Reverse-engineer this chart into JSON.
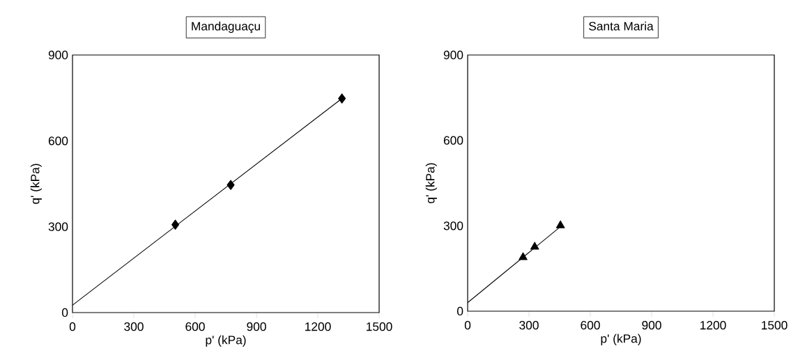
{
  "chart_data": [
    {
      "type": "scatter",
      "title": "Mandaguaçu",
      "xlabel": "p' (kPa)",
      "ylabel": "q' (kPa)",
      "marker": "diamond",
      "xlim": [
        0,
        1500
      ],
      "ylim": [
        0,
        900
      ],
      "xticks": [
        0,
        300,
        600,
        900,
        1200,
        1500
      ],
      "yticks": [
        0,
        300,
        600,
        900
      ],
      "grid": false,
      "legend": false,
      "series": [
        {
          "color": "#000000",
          "x": [
            503,
            774,
            1318
          ],
          "values": [
            307,
            446,
            748
          ]
        },
        {
          "type": "line",
          "color": "#000000",
          "marker": "none",
          "x": [
            0,
            1318
          ],
          "values": [
            26,
            748
          ]
        }
      ]
    },
    {
      "type": "scatter",
      "title": "Santa Maria",
      "xlabel": "p' (kPa)",
      "ylabel": "q' (kPa)",
      "marker": "triangle",
      "xlim": [
        0,
        1500
      ],
      "ylim": [
        0,
        900
      ],
      "xticks": [
        0,
        300,
        600,
        900,
        1200,
        1500
      ],
      "yticks": [
        0,
        300,
        600,
        900
      ],
      "grid": false,
      "legend": false,
      "series": [
        {
          "color": "#000000",
          "x": [
            271,
            328,
            454
          ],
          "values": [
            189,
            226,
            301
          ]
        },
        {
          "type": "line",
          "color": "#000000",
          "marker": "none",
          "x": [
            0,
            454
          ],
          "values": [
            30,
            297
          ]
        }
      ]
    }
  ]
}
